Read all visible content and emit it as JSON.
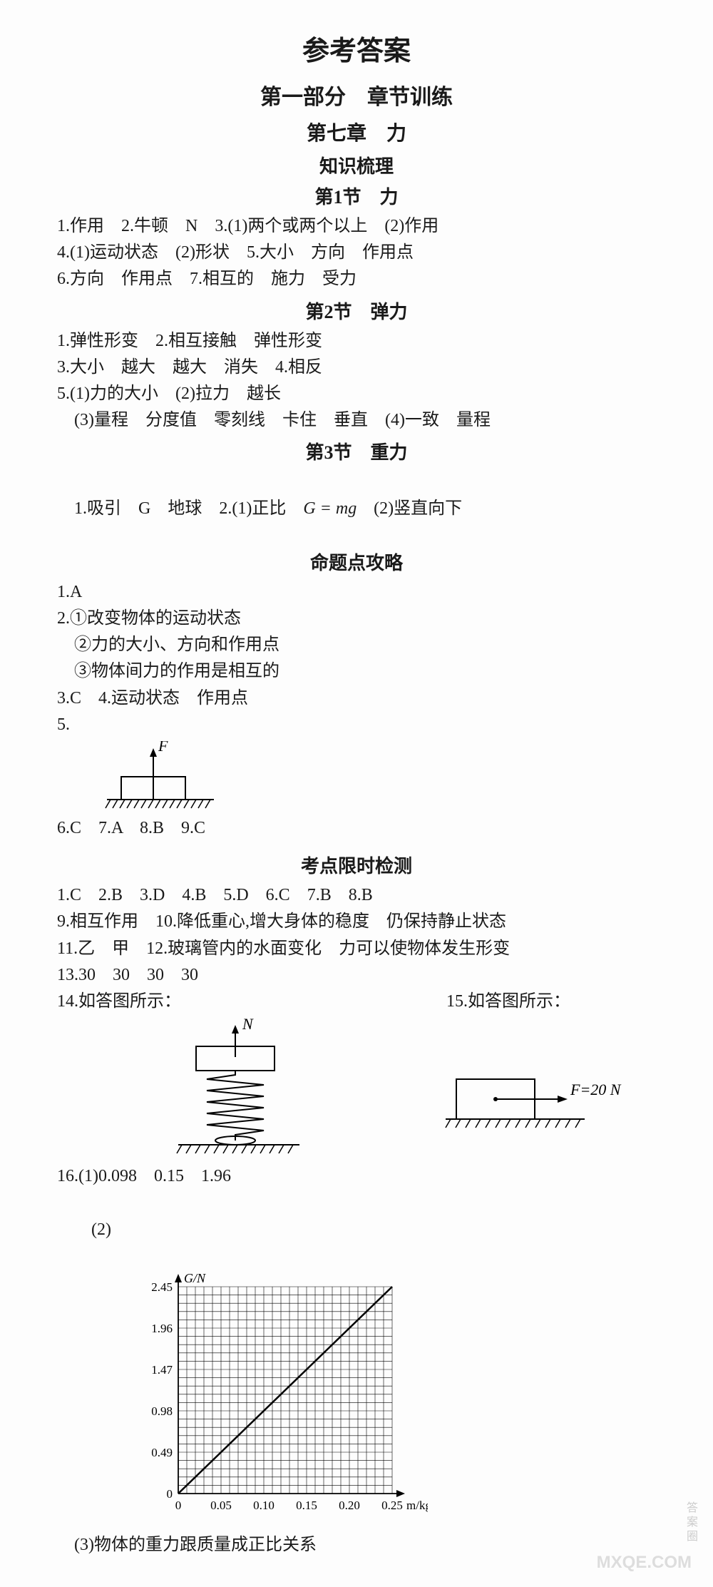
{
  "titles": {
    "main": "参考答案",
    "part": "第一部分　章节训练",
    "chapter": "第七章　力",
    "knowledge": "知识梳理",
    "s1": "第1节　力",
    "s2": "第2节　弹力",
    "s3": "第3节　重力",
    "topic": "命题点攻略",
    "timed": "考点限时检测"
  },
  "s1_lines": [
    "1.作用　2.牛顿　N　3.(1)两个或两个以上　(2)作用",
    "4.(1)运动状态　(2)形状　5.大小　方向　作用点",
    "6.方向　作用点　7.相互的　施力　受力"
  ],
  "s2_lines": [
    "1.弹性形变　2.相互接触　弹性形变",
    "3.大小　越大　越大　消失　4.相反",
    "5.(1)力的大小　(2)拉力　越长",
    "　(3)量程　分度值　零刻线　卡住　垂直　(4)一致　量程"
  ],
  "s3_lines_a": "1.吸引　G　地球　2.(1)正比　",
  "s3_formula": "G = mg",
  "s3_lines_b": "　(2)竖直向下",
  "topic_lines": [
    "1.A",
    "2.①改变物体的运动状态",
    "　②力的大小、方向和作用点",
    "　③物体间力的作用是相互的",
    "3.C　4.运动状态　作用点",
    "5."
  ],
  "topic_after_fig": "6.C　7.A　8.B　9.C",
  "timed_lines": [
    "1.C　2.B　3.D　4.B　5.D　6.C　7.B　8.B",
    "9.相互作用　10.降低重心,增大身体的稳度　仍保持静止状态",
    "11.乙　甲　12.玻璃管内的水面变化　力可以使物体发生形变",
    "13.30　30　30　30"
  ],
  "q14_label": "14.如答图所示：",
  "q15_label": "15.如答图所示：",
  "q16_a": "16.(1)0.098　0.15　1.96",
  "q16_b_prefix": "　(2)",
  "q16_c": "　(3)物体的重力跟质量成正比关系",
  "fig5": {
    "F": "F",
    "stroke": "#000000"
  },
  "fig14": {
    "N": "N",
    "stroke": "#000000"
  },
  "fig15": {
    "label": "F=20 N",
    "stroke": "#000000"
  },
  "chart": {
    "type": "line",
    "ylabel": "G/N",
    "xlabel": "m/kg",
    "x_ticks": [
      "0",
      "0.05",
      "0.10",
      "0.15",
      "0.20",
      "0.25"
    ],
    "y_ticks": [
      "0",
      "0.49",
      "0.98",
      "1.47",
      "1.96",
      "2.45"
    ],
    "xlim": [
      0,
      0.25
    ],
    "ylim": [
      0,
      2.45
    ],
    "grid_divisions": 25,
    "line_color": "#000000",
    "grid_color": "#000000",
    "background": "#ffffff",
    "data_start": [
      0,
      0
    ],
    "data_end": [
      0.25,
      2.45
    ]
  },
  "watermarks": {
    "right": "答案圈",
    "bottom": "MXQE.COM"
  }
}
